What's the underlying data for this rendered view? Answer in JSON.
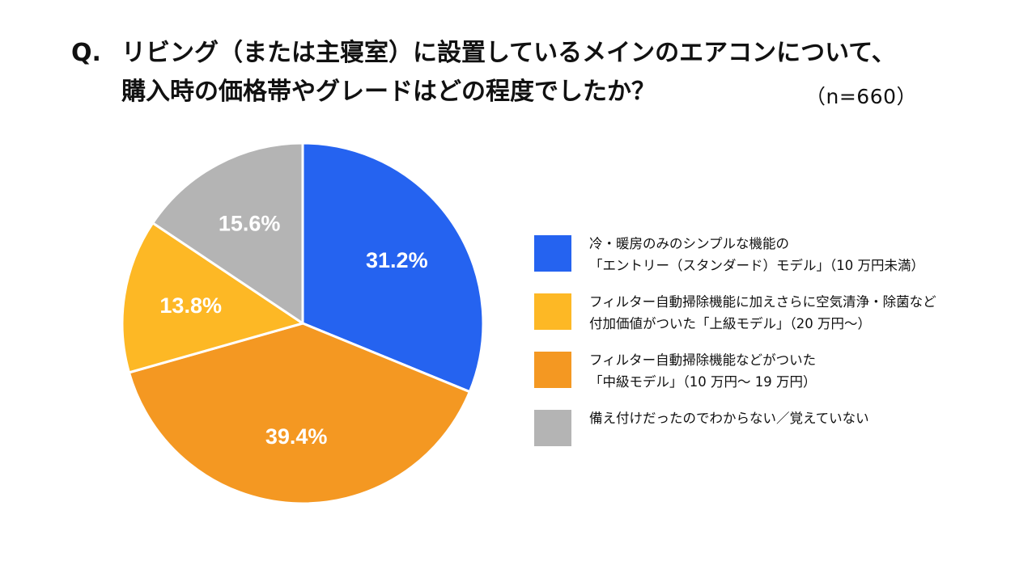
{
  "title": {
    "prefix": "Q.",
    "line1": "リビング（または主寝室）に設置しているメインのエアコンについて、",
    "line2": "購入時の価格帯やグレードはどの程度でしたか？",
    "sample": "（n=660）"
  },
  "chart_data": {
    "type": "pie",
    "start": "12 o'clock",
    "direction": "clockwise",
    "slices": [
      {
        "key": "entry",
        "label_line1": "冷・暖房のみのシンプルな機能の",
        "label_line2": "「エントリー（スタンダード）モデル」（10 万円未満）",
        "value": 31.2,
        "display": "31.2%",
        "color": "#2563f0"
      },
      {
        "key": "middle",
        "label_line1": "フィルター自動掃除機能などがついた",
        "label_line2": "「中級モデル」（10 万円〜 19 万円）",
        "value": 39.4,
        "display": "39.4%",
        "color": "#f49822"
      },
      {
        "key": "upper",
        "label_line1": "フィルター自動掃除機能に加えさらに空気清浄・除菌など",
        "label_line2": "付加価値がついた「上級モデル」（20 万円〜）",
        "value": 13.8,
        "display": "13.8%",
        "color": "#fdb825"
      },
      {
        "key": "unknown",
        "label_line1": "備え付けだったのでわからない／覚えていない",
        "label_line2": "",
        "value": 15.6,
        "display": "15.6%",
        "color": "#b4b4b4"
      }
    ],
    "legend_order": [
      "entry",
      "upper",
      "middle",
      "unknown"
    ],
    "label_color": "#ffffff"
  }
}
